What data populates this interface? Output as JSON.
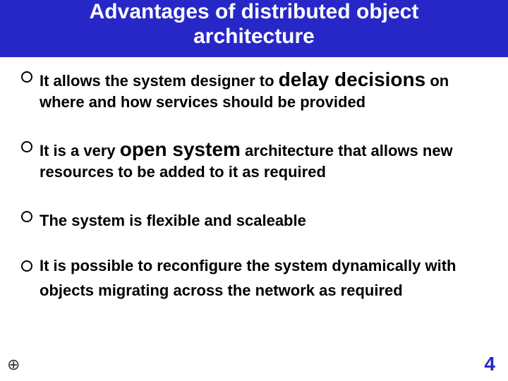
{
  "title_line1": "Advantages of distributed object",
  "title_line2": "architecture",
  "bullets": [
    {
      "pre": "It allows the system designer to ",
      "emph": "delay decisions",
      "post": " on where and how services should be provided"
    },
    {
      "pre": "It is a very ",
      "emph": "open system",
      "post": " architecture that allows new resources to be added to it as required"
    },
    {
      "pre": "The system is flexible and scaleable",
      "emph": "",
      "post": ""
    },
    {
      "pre": "It is possible to reconfigure the system dynamically with objects migrating across the network as required",
      "emph": "",
      "post": ""
    }
  ],
  "page_number": "4",
  "footer_icon": "⊕",
  "colors": {
    "title_bg": "#2727c8",
    "title_text": "#ffffff",
    "body_text": "#000000",
    "page_num": "#2727c8"
  }
}
